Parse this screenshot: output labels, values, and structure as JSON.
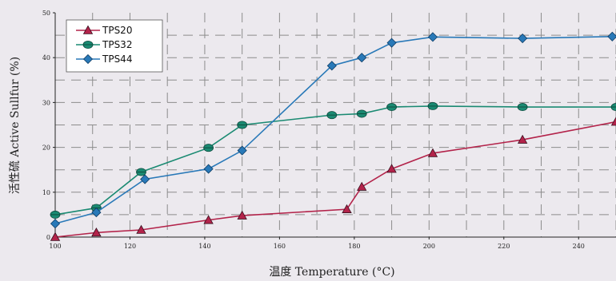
{
  "chart_data": {
    "type": "line",
    "xlabel": "温度  Temperature (°C)",
    "ylabel": "活性硫  Active Sullfur (%)",
    "xlim": [
      100,
      250
    ],
    "ylim": [
      0,
      50
    ],
    "x_ticks": [
      100,
      120,
      140,
      160,
      180,
      200,
      220,
      240
    ],
    "y_ticks": [
      0,
      10,
      20,
      30,
      40,
      50
    ],
    "grid": "dashed",
    "legend_position": "top-left",
    "series": [
      {
        "name": "TPS20",
        "marker": "triangle",
        "color": "#b3234a",
        "points": [
          [
            100,
            0
          ],
          [
            111,
            1
          ],
          [
            123,
            1.6
          ],
          [
            141,
            3.8
          ],
          [
            150,
            4.8
          ],
          [
            178,
            6.2
          ],
          [
            182,
            11.2
          ],
          [
            190,
            15.2
          ],
          [
            201,
            18.7
          ],
          [
            225,
            21.7
          ],
          [
            250,
            25.7
          ]
        ]
      },
      {
        "name": "TPS32",
        "marker": "circle",
        "color": "#1a8a72",
        "points": [
          [
            100,
            5
          ],
          [
            111,
            6.5
          ],
          [
            123,
            14.5
          ],
          [
            141,
            19.9
          ],
          [
            150,
            25
          ],
          [
            174,
            27.2
          ],
          [
            182,
            27.5
          ],
          [
            190,
            29
          ],
          [
            201,
            29.2
          ],
          [
            225,
            29
          ],
          [
            250,
            29
          ]
        ]
      },
      {
        "name": "TPS44",
        "marker": "diamond",
        "color": "#2979b8",
        "points": [
          [
            100,
            3
          ],
          [
            111,
            5.5
          ],
          [
            124,
            12.9
          ],
          [
            141,
            15.2
          ],
          [
            150,
            19.3
          ],
          [
            174,
            38.2
          ],
          [
            182,
            40
          ],
          [
            190,
            43.3
          ],
          [
            201,
            44.6
          ],
          [
            225,
            44.3
          ],
          [
            249,
            44.7
          ]
        ]
      }
    ]
  }
}
